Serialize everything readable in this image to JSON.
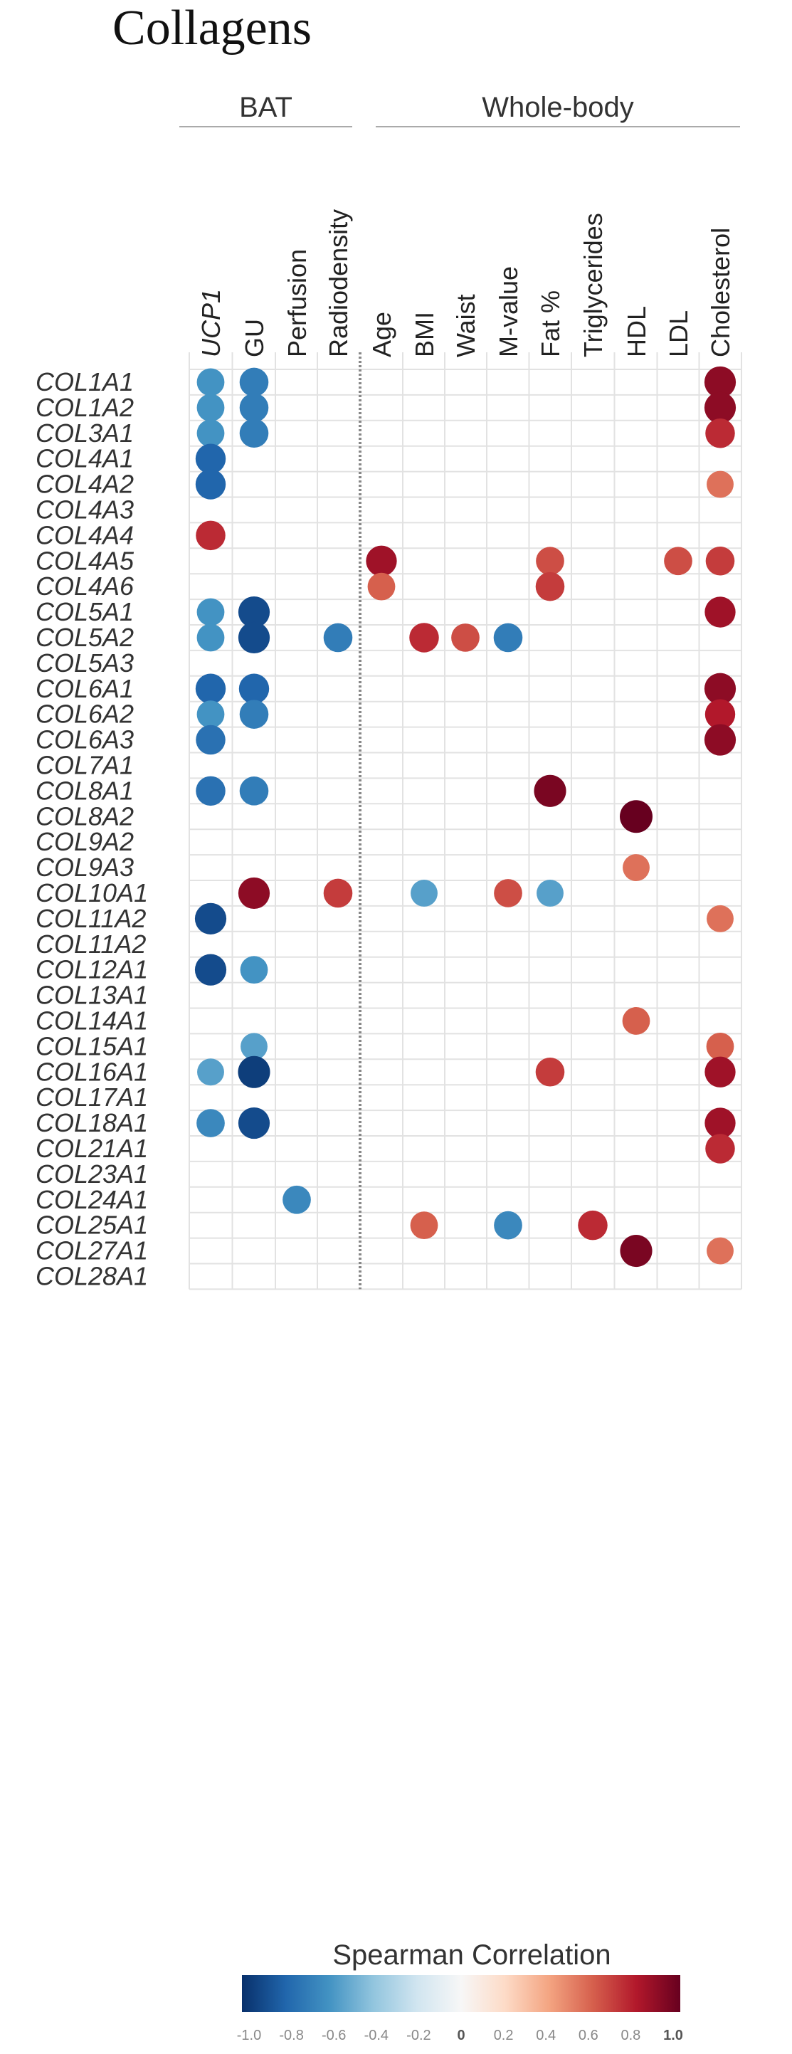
{
  "chart_data": {
    "type": "heatmap",
    "title": "Collagens",
    "column_groups": [
      {
        "label": "BAT",
        "columns": [
          "UCP1",
          "GU",
          "Perfusion",
          "Radiodensity"
        ]
      },
      {
        "label": "Whole-body",
        "columns": [
          "Age",
          "BMI",
          "Waist",
          "M-value",
          "Fat %",
          "Triglycerides",
          "HDL",
          "LDL",
          "Cholesterol"
        ]
      }
    ],
    "columns": [
      "UCP1",
      "GU",
      "Perfusion",
      "Radiodensity",
      "Age",
      "BMI",
      "Waist",
      "M-value",
      "Fat %",
      "Triglycerides",
      "HDL",
      "LDL",
      "Cholesterol"
    ],
    "italic_columns": [
      "UCP1"
    ],
    "rows": [
      "COL1A1",
      "COL1A2",
      "COL3A1",
      "COL4A1",
      "COL4A2",
      "COL4A3",
      "COL4A4",
      "COL4A5",
      "COL4A6",
      "COL5A1",
      "COL5A2",
      "COL5A3",
      "COL6A1",
      "COL6A2",
      "COL6A3",
      "COL7A1",
      "COL8A1",
      "COL8A2",
      "COL9A2",
      "COL9A3",
      "COL10A1",
      "COL11A2",
      "COL11A2",
      "COL12A1",
      "COL13A1",
      "COL14A1",
      "COL15A1",
      "COL16A1",
      "COL17A1",
      "COL18A1",
      "COL21A1",
      "COL23A1",
      "COL24A1",
      "COL25A1",
      "COL27A1",
      "COL28A1"
    ],
    "values": [
      [
        -0.6,
        -0.7,
        null,
        null,
        null,
        null,
        null,
        null,
        null,
        null,
        null,
        null,
        0.9
      ],
      [
        -0.6,
        -0.7,
        null,
        null,
        null,
        null,
        null,
        null,
        null,
        null,
        null,
        null,
        0.9
      ],
      [
        -0.6,
        -0.7,
        null,
        null,
        null,
        null,
        null,
        null,
        null,
        null,
        null,
        null,
        0.75
      ],
      [
        -0.8,
        null,
        null,
        null,
        null,
        null,
        null,
        null,
        null,
        null,
        null,
        null,
        null
      ],
      [
        -0.8,
        null,
        null,
        null,
        null,
        null,
        null,
        null,
        null,
        null,
        null,
        null,
        0.55
      ],
      [
        null,
        null,
        null,
        null,
        null,
        null,
        null,
        null,
        null,
        null,
        null,
        null,
        null
      ],
      [
        0.75,
        null,
        null,
        null,
        null,
        null,
        null,
        null,
        null,
        null,
        null,
        null,
        null
      ],
      [
        null,
        null,
        null,
        null,
        0.85,
        null,
        null,
        null,
        0.65,
        null,
        null,
        0.65,
        0.7
      ],
      [
        null,
        null,
        null,
        null,
        0.6,
        null,
        null,
        null,
        0.7,
        null,
        null,
        null,
        null
      ],
      [
        -0.6,
        -0.9,
        null,
        null,
        null,
        null,
        null,
        null,
        null,
        null,
        null,
        null,
        0.85
      ],
      [
        -0.6,
        -0.9,
        null,
        -0.7,
        null,
        0.75,
        0.65,
        -0.7,
        null,
        null,
        null,
        null,
        null
      ],
      [
        null,
        null,
        null,
        null,
        null,
        null,
        null,
        null,
        null,
        null,
        null,
        null,
        null
      ],
      [
        -0.8,
        -0.8,
        null,
        null,
        null,
        null,
        null,
        null,
        null,
        null,
        null,
        null,
        0.9
      ],
      [
        -0.6,
        -0.7,
        null,
        null,
        null,
        null,
        null,
        null,
        null,
        null,
        null,
        null,
        0.8
      ],
      [
        -0.75,
        null,
        null,
        null,
        null,
        null,
        null,
        null,
        null,
        null,
        null,
        null,
        0.9
      ],
      [
        null,
        null,
        null,
        null,
        null,
        null,
        null,
        null,
        null,
        null,
        null,
        null,
        null
      ],
      [
        -0.75,
        -0.7,
        null,
        null,
        null,
        null,
        null,
        null,
        0.95,
        null,
        null,
        null,
        null
      ],
      [
        null,
        null,
        null,
        null,
        null,
        null,
        null,
        null,
        null,
        null,
        1.0,
        null,
        null
      ],
      [
        null,
        null,
        null,
        null,
        null,
        null,
        null,
        null,
        null,
        null,
        null,
        null,
        null
      ],
      [
        null,
        null,
        null,
        null,
        null,
        null,
        null,
        null,
        null,
        null,
        0.55,
        null,
        null
      ],
      [
        null,
        0.9,
        null,
        0.7,
        null,
        -0.55,
        null,
        0.65,
        -0.55,
        null,
        null,
        null,
        null
      ],
      [
        -0.9,
        null,
        null,
        null,
        null,
        null,
        null,
        null,
        null,
        null,
        null,
        null,
        0.55
      ],
      [
        null,
        null,
        null,
        null,
        null,
        null,
        null,
        null,
        null,
        null,
        null,
        null,
        null
      ],
      [
        -0.9,
        -0.6,
        null,
        null,
        null,
        null,
        null,
        null,
        null,
        null,
        null,
        null,
        null
      ],
      [
        null,
        null,
        null,
        null,
        null,
        null,
        null,
        null,
        null,
        null,
        null,
        null,
        null
      ],
      [
        null,
        null,
        null,
        null,
        null,
        null,
        null,
        null,
        null,
        null,
        0.6,
        null,
        null
      ],
      [
        null,
        -0.55,
        null,
        null,
        null,
        null,
        null,
        null,
        null,
        null,
        null,
        null,
        0.6
      ],
      [
        -0.55,
        -0.95,
        null,
        null,
        null,
        null,
        null,
        null,
        0.7,
        null,
        null,
        null,
        0.85
      ],
      [
        null,
        null,
        null,
        null,
        null,
        null,
        null,
        null,
        null,
        null,
        null,
        null,
        null
      ],
      [
        -0.65,
        -0.9,
        null,
        null,
        null,
        null,
        null,
        null,
        null,
        null,
        null,
        null,
        0.85
      ],
      [
        null,
        null,
        null,
        null,
        null,
        null,
        null,
        null,
        null,
        null,
        null,
        null,
        0.75
      ],
      [
        null,
        null,
        null,
        null,
        null,
        null,
        null,
        null,
        null,
        null,
        null,
        null,
        null
      ],
      [
        null,
        null,
        -0.65,
        null,
        null,
        null,
        null,
        null,
        null,
        null,
        null,
        null,
        null
      ],
      [
        null,
        null,
        null,
        null,
        null,
        0.6,
        null,
        -0.65,
        null,
        0.75,
        null,
        null,
        null
      ],
      [
        null,
        null,
        null,
        null,
        null,
        null,
        null,
        null,
        null,
        null,
        0.95,
        null,
        0.55
      ],
      [
        null,
        null,
        null,
        null,
        null,
        null,
        null,
        null,
        null,
        null,
        null,
        null,
        null
      ]
    ],
    "legend": {
      "title": "Spearman Correlation",
      "range": [
        -1.0,
        1.0
      ],
      "ticks": [
        "-1.0",
        "-0.8",
        "-0.6",
        "-0.4",
        "-0.2",
        "0",
        "0.2",
        "0.4",
        "0.6",
        "0.8",
        "1.0"
      ],
      "placement": "bottom",
      "colors": [
        "#08306b",
        "#2166ac",
        "#4393c3",
        "#92c5de",
        "#d1e5f0",
        "#f7f7f7",
        "#fddbc7",
        "#f4a582",
        "#d6604d",
        "#b2182b",
        "#67001f"
      ]
    },
    "grid": true,
    "divider_after_column": "Radiodensity"
  }
}
